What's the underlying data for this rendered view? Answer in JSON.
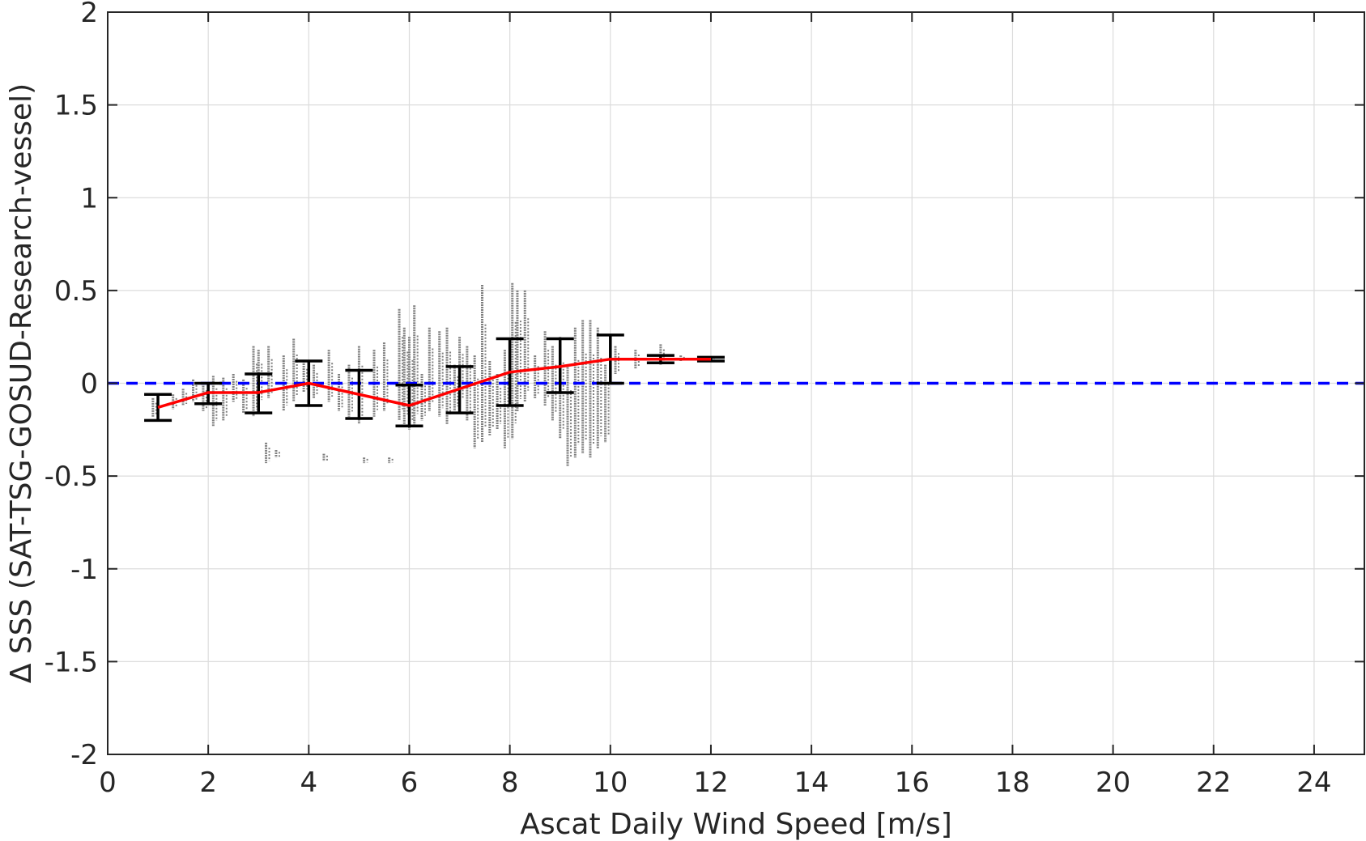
{
  "chart_data": {
    "type": "scatter",
    "xlabel": "Ascat Daily Wind Speed [m/s]",
    "ylabel": "Δ SSS (SAT-TSG-GOSUD-Research-vessel)",
    "xlim": [
      0,
      25
    ],
    "ylim": [
      -2,
      2
    ],
    "x_ticks": [
      0,
      2,
      4,
      6,
      8,
      10,
      12,
      14,
      16,
      18,
      20,
      22,
      24
    ],
    "y_ticks": [
      -2,
      -1.5,
      -1,
      -0.5,
      0,
      0.5,
      1,
      1.5,
      2
    ],
    "y_tick_labels": [
      "-2",
      "-1.5",
      "-1",
      "-0.5",
      "0",
      "0.5",
      "1",
      "1.5",
      "2"
    ],
    "grid": true,
    "reference_line": {
      "y": 0,
      "color": "#0000ff",
      "style": "dashed"
    },
    "binned_mean": {
      "color": "#ff0000",
      "x": [
        1,
        2,
        3,
        4,
        5,
        6,
        7,
        8,
        9,
        10,
        11,
        12
      ],
      "mean": [
        -0.13,
        -0.05,
        -0.05,
        0.0,
        -0.06,
        -0.12,
        -0.03,
        0.06,
        0.09,
        0.13,
        0.13,
        0.13
      ],
      "upper": [
        -0.06,
        0.0,
        0.05,
        0.12,
        0.07,
        -0.01,
        0.09,
        0.24,
        0.24,
        0.26,
        0.15,
        0.14
      ],
      "lower": [
        -0.2,
        -0.11,
        -0.16,
        -0.12,
        -0.19,
        -0.23,
        -0.16,
        -0.12,
        -0.05,
        0.0,
        0.11,
        0.12
      ]
    },
    "scatter_color": "#808080",
    "scatter_columns": [
      {
        "x": 0.9,
        "lo": -0.18,
        "hi": -0.08
      },
      {
        "x": 1.3,
        "lo": -0.14,
        "hi": -0.06
      },
      {
        "x": 1.5,
        "lo": -0.12,
        "hi": -0.03
      },
      {
        "x": 1.7,
        "lo": -0.1,
        "hi": 0.02
      },
      {
        "x": 1.9,
        "lo": -0.15,
        "hi": 0.0
      },
      {
        "x": 2.1,
        "lo": -0.23,
        "hi": 0.04
      },
      {
        "x": 2.3,
        "lo": -0.2,
        "hi": 0.03
      },
      {
        "x": 2.5,
        "lo": -0.1,
        "hi": 0.05
      },
      {
        "x": 2.7,
        "lo": -0.16,
        "hi": 0.02
      },
      {
        "x": 2.9,
        "lo": -0.18,
        "hi": 0.2
      },
      {
        "x": 3.0,
        "lo": -0.12,
        "hi": 0.18
      },
      {
        "x": 3.15,
        "lo": -0.43,
        "hi": -0.32
      },
      {
        "x": 3.2,
        "lo": -0.08,
        "hi": 0.2
      },
      {
        "x": 3.35,
        "lo": -0.4,
        "hi": -0.36
      },
      {
        "x": 3.5,
        "lo": -0.15,
        "hi": 0.15
      },
      {
        "x": 3.7,
        "lo": -0.1,
        "hi": 0.24
      },
      {
        "x": 3.9,
        "lo": -0.05,
        "hi": 0.12
      },
      {
        "x": 4.1,
        "lo": -0.08,
        "hi": 0.1
      },
      {
        "x": 4.3,
        "lo": -0.42,
        "hi": -0.38
      },
      {
        "x": 4.4,
        "lo": -0.1,
        "hi": 0.18
      },
      {
        "x": 4.6,
        "lo": -0.15,
        "hi": 0.05
      },
      {
        "x": 4.8,
        "lo": -0.18,
        "hi": 0.1
      },
      {
        "x": 5.0,
        "lo": -0.22,
        "hi": 0.2
      },
      {
        "x": 5.1,
        "lo": -0.43,
        "hi": -0.4
      },
      {
        "x": 5.3,
        "lo": -0.18,
        "hi": 0.18
      },
      {
        "x": 5.5,
        "lo": -0.15,
        "hi": 0.22
      },
      {
        "x": 5.6,
        "lo": -0.43,
        "hi": -0.4
      },
      {
        "x": 5.8,
        "lo": -0.2,
        "hi": 0.4
      },
      {
        "x": 5.9,
        "lo": -0.22,
        "hi": 0.3
      },
      {
        "x": 6.0,
        "lo": -0.25,
        "hi": 0.25
      },
      {
        "x": 6.1,
        "lo": -0.23,
        "hi": 0.42
      },
      {
        "x": 6.25,
        "lo": -0.2,
        "hi": 0.05
      },
      {
        "x": 6.4,
        "lo": -0.15,
        "hi": 0.3
      },
      {
        "x": 6.6,
        "lo": -0.18,
        "hi": 0.28
      },
      {
        "x": 6.75,
        "lo": -0.22,
        "hi": 0.3
      },
      {
        "x": 6.9,
        "lo": -0.15,
        "hi": 0.1
      },
      {
        "x": 7.0,
        "lo": -0.12,
        "hi": 0.25
      },
      {
        "x": 7.15,
        "lo": -0.2,
        "hi": 0.2
      },
      {
        "x": 7.3,
        "lo": -0.35,
        "hi": 0.15
      },
      {
        "x": 7.45,
        "lo": -0.32,
        "hi": 0.53
      },
      {
        "x": 7.6,
        "lo": -0.28,
        "hi": 0.12
      },
      {
        "x": 7.75,
        "lo": -0.25,
        "hi": 0.05
      },
      {
        "x": 7.9,
        "lo": -0.35,
        "hi": 0.18
      },
      {
        "x": 8.05,
        "lo": -0.3,
        "hi": 0.54
      },
      {
        "x": 8.15,
        "lo": -0.15,
        "hi": 0.5
      },
      {
        "x": 8.3,
        "lo": -0.1,
        "hi": 0.5
      },
      {
        "x": 8.5,
        "lo": -0.08,
        "hi": 0.15
      },
      {
        "x": 8.7,
        "lo": -0.12,
        "hi": 0.28
      },
      {
        "x": 8.85,
        "lo": -0.2,
        "hi": 0.2
      },
      {
        "x": 9.0,
        "lo": -0.3,
        "hi": 0.25
      },
      {
        "x": 9.15,
        "lo": -0.45,
        "hi": 0.1
      },
      {
        "x": 9.3,
        "lo": -0.4,
        "hi": 0.3
      },
      {
        "x": 9.45,
        "lo": -0.38,
        "hi": 0.34
      },
      {
        "x": 9.6,
        "lo": -0.4,
        "hi": 0.34
      },
      {
        "x": 9.75,
        "lo": -0.35,
        "hi": 0.3
      },
      {
        "x": 9.9,
        "lo": -0.32,
        "hi": 0.1
      },
      {
        "x": 10.1,
        "lo": 0.05,
        "hi": 0.2
      },
      {
        "x": 10.5,
        "lo": 0.08,
        "hi": 0.18
      },
      {
        "x": 11.0,
        "lo": 0.1,
        "hi": 0.21
      },
      {
        "x": 11.4,
        "lo": 0.12,
        "hi": 0.15
      },
      {
        "x": 12.0,
        "lo": 0.13,
        "hi": 0.14
      }
    ]
  }
}
